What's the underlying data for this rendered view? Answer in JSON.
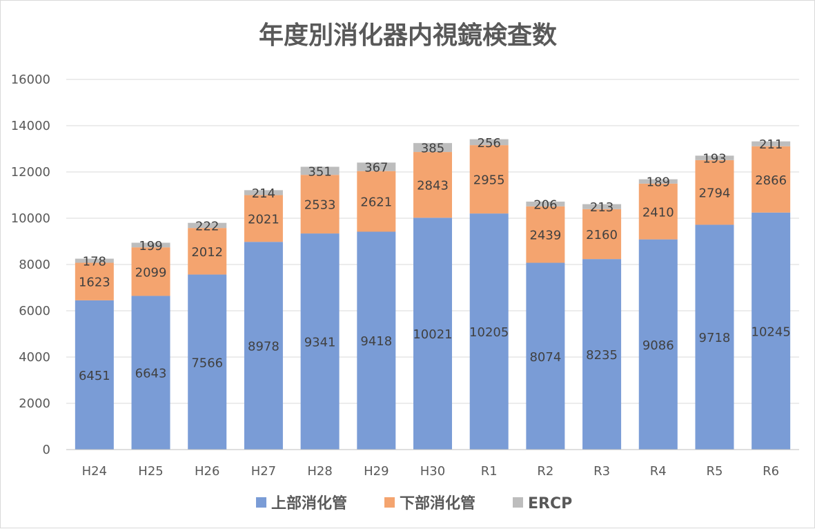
{
  "chart_data": {
    "type": "bar",
    "stacked": true,
    "title": "年度別消化器内視鏡検査数",
    "xlabel": "",
    "ylabel": "",
    "ylim": [
      0,
      16000
    ],
    "yticks": [
      0,
      2000,
      4000,
      6000,
      8000,
      10000,
      12000,
      14000,
      16000
    ],
    "grid": true,
    "legend_position": "bottom",
    "data_labels": true,
    "categories": [
      "H24",
      "H25",
      "H26",
      "H27",
      "H28",
      "H29",
      "H30",
      "R1",
      "R2",
      "R3",
      "R4",
      "R5",
      "R6"
    ],
    "series": [
      {
        "name": "上部消化管",
        "color": "#7a9cd6",
        "values": [
          6451,
          6643,
          7566,
          8978,
          9341,
          9418,
          10021,
          10205,
          8074,
          8235,
          9086,
          9718,
          10245
        ]
      },
      {
        "name": "下部消化管",
        "color": "#f4a46f",
        "values": [
          1623,
          2099,
          2012,
          2021,
          2533,
          2621,
          2843,
          2955,
          2439,
          2160,
          2410,
          2794,
          2866
        ]
      },
      {
        "name": "ERCP",
        "color": "#bdbdbd",
        "values": [
          178,
          199,
          222,
          214,
          351,
          367,
          385,
          256,
          206,
          213,
          189,
          193,
          211
        ]
      }
    ],
    "gridline_color": "#d9d9d9",
    "text_color": "#595959",
    "data_label_color": "#404040"
  }
}
